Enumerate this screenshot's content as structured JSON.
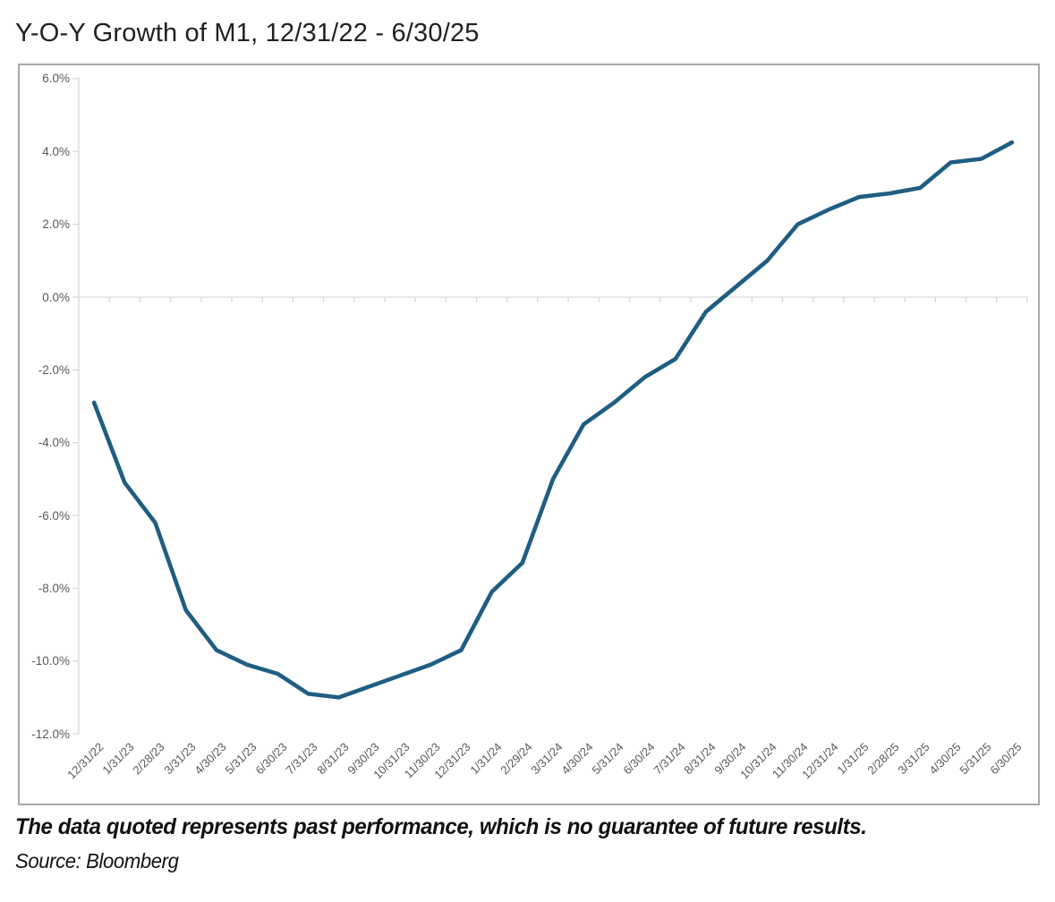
{
  "title": "Y-O-Y Growth of M1, 12/31/22 - 6/30/25",
  "disclaimer": "The data quoted represents past performance, which is no guarantee of future results.",
  "source": "Source: Bloomberg",
  "colors": {
    "line": "#1F5E82",
    "axis": "#D9D9D9",
    "tick_label": "#595959",
    "frame_border": "#A8A8A8",
    "title_text": "#212121",
    "footer_text": "#111111"
  },
  "chart_data": {
    "type": "line",
    "title": "Y-O-Y Growth of M1, 12/31/22 - 6/30/25",
    "series_name": "Y-O-Y Growth of M1 (%)",
    "categories": [
      "12/31/22",
      "1/31/23",
      "2/28/23",
      "3/31/23",
      "4/30/23",
      "5/31/23",
      "6/30/23",
      "7/31/23",
      "8/31/23",
      "9/30/23",
      "10/31/23",
      "11/30/23",
      "12/31/23",
      "1/31/24",
      "2/29/24",
      "3/31/24",
      "4/30/24",
      "5/31/24",
      "6/30/24",
      "7/31/24",
      "8/31/24",
      "9/30/24",
      "10/31/24",
      "11/30/24",
      "12/31/24",
      "1/31/25",
      "2/28/25",
      "3/31/25",
      "4/30/25",
      "5/31/25",
      "6/30/25"
    ],
    "values": [
      -2.9,
      -5.1,
      -6.2,
      -8.6,
      -9.7,
      -10.1,
      -10.35,
      -10.9,
      -11.0,
      -10.7,
      -10.4,
      -10.1,
      -9.7,
      -8.1,
      -7.3,
      -5.0,
      -3.5,
      -2.9,
      -2.2,
      -1.7,
      -0.4,
      0.3,
      1.0,
      2.0,
      2.4,
      2.75,
      2.85,
      3.0,
      3.7,
      3.8,
      4.25
    ],
    "ylim": [
      -12,
      6
    ],
    "ytick_step": 2,
    "ytick_labels": [
      "6.0%",
      "4.0%",
      "2.0%",
      "0.0%",
      "-2.0%",
      "-4.0%",
      "-6.0%",
      "-8.0%",
      "-10.0%",
      "-12.0%"
    ],
    "ytick_format": "one_decimal_percent",
    "grid": "zero-baseline-only",
    "legend": "none",
    "x_label_rotation": -45
  }
}
